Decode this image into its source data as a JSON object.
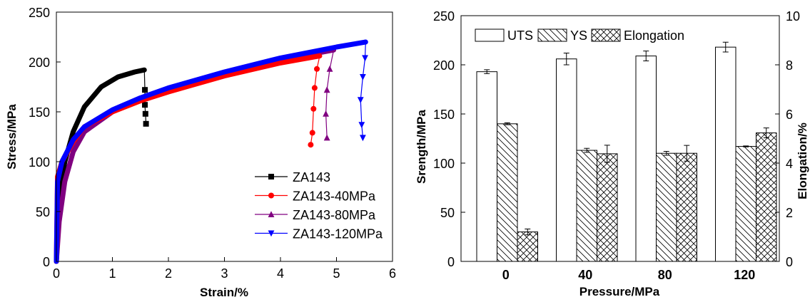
{
  "chart_data": [
    {
      "type": "line",
      "xlabel": "Strain/%",
      "ylabel": "Stress/MPa",
      "xlim": [
        0,
        6
      ],
      "ylim": [
        0,
        250
      ],
      "xticks": [
        "0",
        "1",
        "2",
        "3",
        "4",
        "5",
        "6"
      ],
      "yticks": [
        "0",
        "50",
        "100",
        "150",
        "200",
        "250"
      ],
      "grid": false,
      "legend_placement": "bottom-right",
      "series": [
        {
          "name": "ZA143",
          "color": "#000000",
          "marker": "square",
          "x": [
            0,
            0.05,
            0.15,
            0.3,
            0.5,
            0.8,
            1.1,
            1.4,
            1.57
          ],
          "y": [
            0,
            60,
            100,
            130,
            155,
            175,
            185,
            190,
            192
          ],
          "fracture_x": [
            1.58,
            1.58,
            1.59,
            1.6
          ],
          "fracture_y": [
            172,
            157,
            148,
            138
          ]
        },
        {
          "name": "ZA143-40MPa",
          "color": "#ff0000",
          "marker": "circle",
          "x": [
            0,
            0.02,
            0.1,
            0.3,
            0.5,
            1,
            1.5,
            2,
            3,
            4,
            4.7
          ],
          "y": [
            0,
            85,
            100,
            120,
            135,
            150,
            161,
            170,
            186,
            199,
            206
          ],
          "fracture_x": [
            4.65,
            4.61,
            4.59,
            4.57,
            4.54
          ],
          "fracture_y": [
            193,
            174,
            153,
            129,
            117
          ]
        },
        {
          "name": "ZA143-80MPa",
          "color": "#800080",
          "marker": "triangle-up",
          "x": [
            0,
            0.05,
            0.15,
            0.3,
            0.5,
            1,
            1.5,
            2,
            3,
            4,
            4.95
          ],
          "y": [
            0,
            40,
            80,
            110,
            130,
            150,
            162,
            172,
            188,
            202,
            212
          ],
          "fracture_x": [
            4.88,
            4.83,
            4.81,
            4.83
          ],
          "fracture_y": [
            193,
            172,
            148,
            124
          ]
        },
        {
          "name": "ZA143-120MPa",
          "color": "#0000ff",
          "marker": "triangle-down",
          "x": [
            0,
            0.02,
            0.1,
            0.3,
            0.5,
            1,
            1.5,
            2,
            3,
            4,
            5,
            5.52
          ],
          "y": [
            0,
            80,
            100,
            122,
            135,
            152,
            164,
            174,
            190,
            204,
            215,
            220
          ],
          "fracture_x": [
            5.51,
            5.47,
            5.43,
            5.45,
            5.47
          ],
          "fracture_y": [
            204,
            185,
            162,
            137,
            124
          ]
        }
      ]
    },
    {
      "type": "bar",
      "xlabel": "Pressure/MPa",
      "ylabel": "Srength/MPa",
      "ylabel_right": "Elongation/%",
      "categories": [
        "0",
        "40",
        "80",
        "120"
      ],
      "ylim": [
        0,
        250
      ],
      "ylim_right": [
        0,
        10
      ],
      "yticks": [
        "0",
        "50",
        "100",
        "150",
        "200",
        "250"
      ],
      "yticks_right": [
        "0",
        "2",
        "4",
        "6",
        "8",
        "10"
      ],
      "legend_placement": "top-left",
      "series": [
        {
          "name": "UTS",
          "axis": "left",
          "pattern": "none",
          "values": [
            193,
            206,
            209,
            218
          ],
          "errors": [
            2,
            6,
            5,
            5
          ]
        },
        {
          "name": "YS",
          "axis": "left",
          "pattern": "diagonal",
          "values": [
            140,
            113,
            110,
            117
          ],
          "errors": [
            1,
            2,
            2,
            0.5
          ]
        },
        {
          "name": "Elongation",
          "axis": "right",
          "pattern": "crosshatch",
          "values": [
            1.2,
            4.38,
            4.4,
            5.23
          ],
          "errors": [
            0.12,
            0.35,
            0.32,
            0.2
          ]
        }
      ]
    }
  ]
}
